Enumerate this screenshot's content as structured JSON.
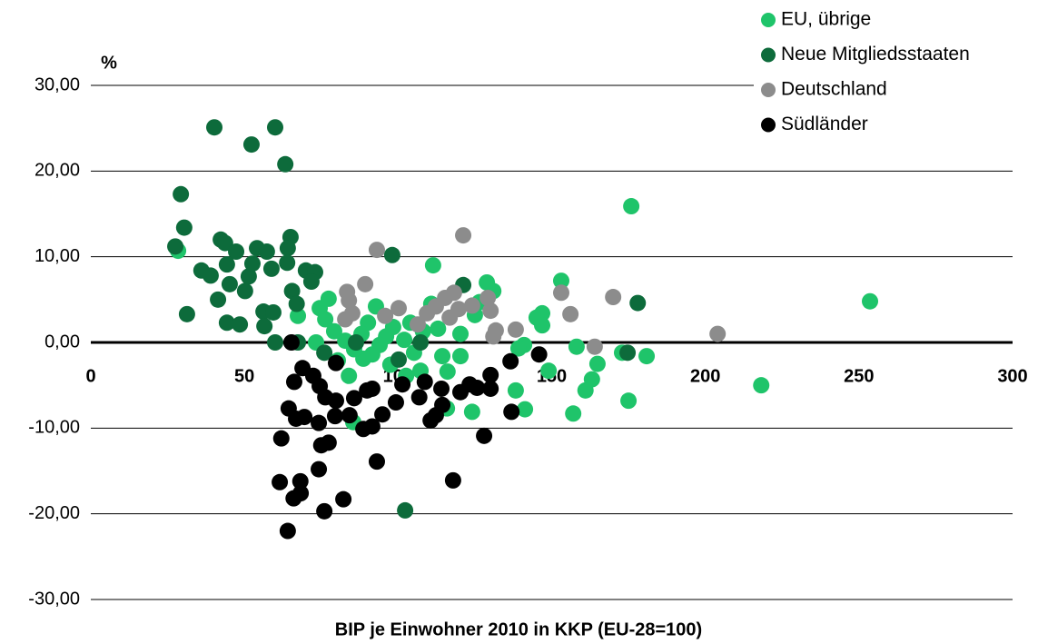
{
  "chart_data": {
    "type": "scatter",
    "y_label": "%",
    "x_label": "BIP je Einwohner 2010 in KKP (EU-28=100)",
    "xlim": [
      0,
      300
    ],
    "xticks": [
      0,
      50,
      100,
      150,
      200,
      250,
      300
    ],
    "ylim": [
      -30,
      30
    ],
    "yticks": [
      {
        "value": 30,
        "label": "30,00"
      },
      {
        "value": 20,
        "label": "20,00"
      },
      {
        "value": 10,
        "label": "10,00"
      },
      {
        "value": 0,
        "label": "0,00"
      },
      {
        "value": -10,
        "label": "-10,00"
      },
      {
        "value": -20,
        "label": "-20,00"
      },
      {
        "value": -30,
        "label": "-30,00"
      }
    ],
    "grid": true,
    "legend": "upper right",
    "series": [
      {
        "name": "EU, übrige",
        "color": "#1fc46a",
        "x": [
          175.9,
          253.6,
          218.2,
          175.0,
          157.0,
          161.0,
          163.1,
          164.9,
          172.9,
          180.9,
          158.1,
          153.1,
          146.9,
          145.1,
          146.9,
          149.0,
          141.0,
          139.2,
          138.3,
          141.3,
          124.1,
          115.9,
          128.9,
          131.0,
          126.5,
          125.0,
          120.3,
          120.3,
          116.1,
          111.4,
          110.8,
          113.0,
          114.4,
          108.1,
          104.0,
          105.2,
          102.0,
          98.4,
          96.1,
          94.0,
          91.6,
          88.7,
          85.7,
          82.8,
          80.4,
          92.8,
          90.2,
          88.1,
          77.4,
          74.5,
          76.3,
          73.3,
          67.4,
          28.4,
          84.0,
          85.4,
          97.5,
          102.6,
          107.3,
          79.2
        ],
        "values": [
          15.9,
          4.8,
          -5.0,
          -6.8,
          -8.3,
          -5.6,
          -4.3,
          -2.5,
          -1.2,
          -1.6,
          -0.5,
          7.2,
          3.4,
          2.9,
          2.0,
          -3.3,
          -0.3,
          -0.7,
          -5.6,
          -7.8,
          -8.1,
          -7.7,
          7.0,
          6.0,
          4.7,
          3.2,
          1.0,
          -1.6,
          -3.4,
          9.0,
          4.5,
          1.6,
          -1.6,
          1.3,
          2.3,
          -1.2,
          0.3,
          1.8,
          0.7,
          -0.3,
          -1.4,
          -1.9,
          -0.8,
          0.2,
          -2.1,
          4.2,
          2.3,
          1.0,
          5.1,
          4.0,
          2.7,
          0.0,
          3.1,
          10.7,
          -3.9,
          -9.3,
          -2.6,
          -3.9,
          -3.3,
          1.3
        ]
      },
      {
        "name": "Neue Mitgliedsstaaten",
        "color": "#0d6b3b",
        "x": [
          40.2,
          60.0,
          52.3,
          63.3,
          29.3,
          30.4,
          27.5,
          65.0,
          42.3,
          43.7,
          54.1,
          47.3,
          57.3,
          64.1,
          36.0,
          39.0,
          44.3,
          45.2,
          50.2,
          51.4,
          58.8,
          52.6,
          63.9,
          70.0,
          73.0,
          71.8,
          98.1,
          41.4,
          31.3,
          56.2,
          59.4,
          44.3,
          48.5,
          56.5,
          65.5,
          67.0,
          60.0,
          67.4,
          76.0,
          86.3,
          100.2,
          107.3,
          121.2,
          178.0,
          174.7,
          102.3
        ],
        "values": [
          25.1,
          25.1,
          23.1,
          20.8,
          17.3,
          13.4,
          11.2,
          12.3,
          12.0,
          11.6,
          11.0,
          10.6,
          10.6,
          11.0,
          8.4,
          7.8,
          9.1,
          6.8,
          6.0,
          7.7,
          8.6,
          9.2,
          9.3,
          8.4,
          8.2,
          7.1,
          10.2,
          5.0,
          3.3,
          3.6,
          3.5,
          2.3,
          2.1,
          1.9,
          6.0,
          4.5,
          0.0,
          0.0,
          -1.2,
          0.0,
          -2.0,
          0.0,
          6.7,
          4.6,
          -1.2,
          -19.6
        ]
      },
      {
        "name": "Deutschland",
        "color": "#8c8c8c",
        "x": [
          121.2,
          93.1,
          89.3,
          83.4,
          84.0,
          82.8,
          85.1,
          100.2,
          95.8,
          106.4,
          109.4,
          112.3,
          115.3,
          118.2,
          116.8,
          119.7,
          124.1,
          129.2,
          130.1,
          131.8,
          138.3,
          131.0,
          153.1,
          156.1,
          170.0,
          164.0,
          204.0
        ],
        "values": [
          12.5,
          10.8,
          6.8,
          5.9,
          4.9,
          2.7,
          3.4,
          4.0,
          3.1,
          2.1,
          3.4,
          4.2,
          5.2,
          5.8,
          2.9,
          3.9,
          4.3,
          5.2,
          3.7,
          1.4,
          1.5,
          0.7,
          5.8,
          3.3,
          5.3,
          -0.5,
          1.0
        ]
      },
      {
        "name": "Südländer",
        "color": "#000000",
        "x": [
          64.1,
          76.0,
          61.5,
          68.2,
          66.0,
          68.3,
          82.2,
          74.2,
          62.0,
          75.0,
          77.4,
          93.1,
          117.9,
          128.0,
          66.8,
          69.5,
          64.4,
          74.2,
          79.5,
          84.2,
          88.7,
          91.6,
          94.9,
          99.3,
          110.6,
          112.3,
          114.4,
          79.8,
          76.3,
          85.7,
          89.9,
          91.6,
          66.2,
          72.4,
          74.5,
          79.8,
          68.9,
          101.4,
          106.9,
          108.7,
          114.1,
          120.3,
          123.3,
          125.7,
          130.1,
          130.1,
          136.6,
          145.9,
          136.9,
          65.3
        ],
        "values": [
          -22.0,
          -19.7,
          -16.3,
          -16.2,
          -18.2,
          -17.6,
          -18.3,
          -14.8,
          -11.2,
          -12.0,
          -11.7,
          -13.9,
          -16.1,
          -10.9,
          -8.9,
          -8.7,
          -7.7,
          -9.4,
          -8.6,
          -8.5,
          -10.1,
          -9.8,
          -8.4,
          -7.0,
          -9.1,
          -8.5,
          -7.3,
          -6.8,
          -6.4,
          -6.5,
          -5.6,
          -5.4,
          -4.6,
          -3.9,
          -5.1,
          -2.4,
          -3.0,
          -4.9,
          -6.4,
          -4.6,
          -5.4,
          -5.8,
          -4.9,
          -5.3,
          -5.4,
          -3.8,
          -2.2,
          -1.4,
          -8.1,
          0.0
        ]
      }
    ]
  }
}
